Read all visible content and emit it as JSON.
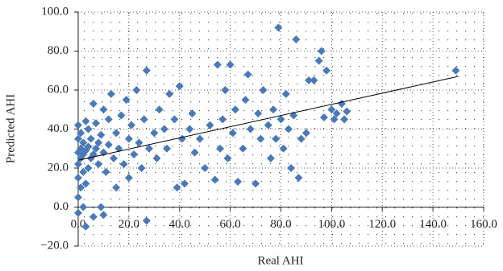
{
  "chart_data": {
    "type": "scatter",
    "x_label": "Real AHI",
    "y_label": "Predicted AHI",
    "xlim": [
      0,
      160
    ],
    "ylim": [
      -20,
      100
    ],
    "xticks": [
      {
        "value": 0,
        "label": "0.0"
      },
      {
        "value": 20,
        "label": "20.0"
      },
      {
        "value": 40,
        "label": "40.0"
      },
      {
        "value": 60,
        "label": "60.0"
      },
      {
        "value": 80,
        "label": "80.0"
      },
      {
        "value": 100,
        "label": "100.0"
      },
      {
        "value": 120,
        "label": "120.0"
      },
      {
        "value": 140,
        "label": "140.0"
      },
      {
        "value": 160,
        "label": "160.0"
      }
    ],
    "yticks": [
      {
        "value": -20,
        "label": "−20.0"
      },
      {
        "value": 0,
        "label": "0.0"
      },
      {
        "value": 20,
        "label": "20.0"
      },
      {
        "value": 40,
        "label": "40.0"
      },
      {
        "value": 60,
        "label": "60.0"
      },
      {
        "value": 80,
        "label": "80.0"
      },
      {
        "value": 100,
        "label": "100.0"
      }
    ],
    "grid": true,
    "color": "#4a79b8",
    "x": [
      0,
      0,
      0,
      0,
      0,
      0,
      0,
      1,
      1,
      1,
      1,
      2,
      2,
      2,
      2,
      3,
      3,
      3,
      3,
      4,
      4,
      4,
      5,
      5,
      6,
      6,
      6,
      7,
      7,
      8,
      8,
      9,
      9,
      10,
      10,
      10,
      11,
      12,
      12,
      13,
      14,
      15,
      15,
      16,
      17,
      18,
      19,
      20,
      20,
      21,
      22,
      23,
      24,
      25,
      26,
      27,
      27,
      28,
      30,
      31,
      32,
      34,
      35,
      36,
      38,
      39,
      40,
      41,
      42,
      44,
      45,
      46,
      48,
      50,
      52,
      54,
      55,
      56,
      57,
      58,
      59,
      60,
      61,
      62,
      63,
      65,
      66,
      67,
      68,
      70,
      71,
      72,
      73,
      75,
      76,
      77,
      78,
      79,
      80,
      81,
      82,
      83,
      84,
      85,
      86,
      87,
      88,
      90,
      91,
      93,
      95,
      96,
      97,
      98,
      100,
      101,
      102,
      104,
      105,
      106,
      149
    ],
    "y": [
      -3,
      5,
      15,
      22,
      28,
      35,
      42,
      10,
      25,
      30,
      38,
      0,
      18,
      27,
      33,
      -10,
      12,
      29,
      44,
      20,
      31,
      40,
      25,
      35,
      -5,
      27,
      53,
      30,
      43,
      22,
      33,
      0,
      37,
      -4,
      28,
      50,
      18,
      32,
      45,
      58,
      25,
      38,
      10,
      30,
      47,
      22,
      55,
      35,
      15,
      42,
      27,
      60,
      33,
      20,
      45,
      70,
      -7,
      30,
      38,
      25,
      50,
      40,
      30,
      58,
      45,
      10,
      62,
      35,
      12,
      40,
      48,
      28,
      35,
      20,
      42,
      14,
      73,
      30,
      45,
      60,
      25,
      73,
      38,
      50,
      13,
      30,
      55,
      68,
      40,
      12,
      48,
      35,
      60,
      42,
      25,
      50,
      35,
      92,
      45,
      30,
      58,
      40,
      20,
      47,
      86,
      15,
      35,
      38,
      65,
      65,
      75,
      80,
      46,
      70,
      50,
      45,
      48,
      53,
      45,
      49,
      70
    ],
    "trendline": {
      "x": [
        0,
        150
      ],
      "y": [
        24,
        67
      ]
    }
  }
}
